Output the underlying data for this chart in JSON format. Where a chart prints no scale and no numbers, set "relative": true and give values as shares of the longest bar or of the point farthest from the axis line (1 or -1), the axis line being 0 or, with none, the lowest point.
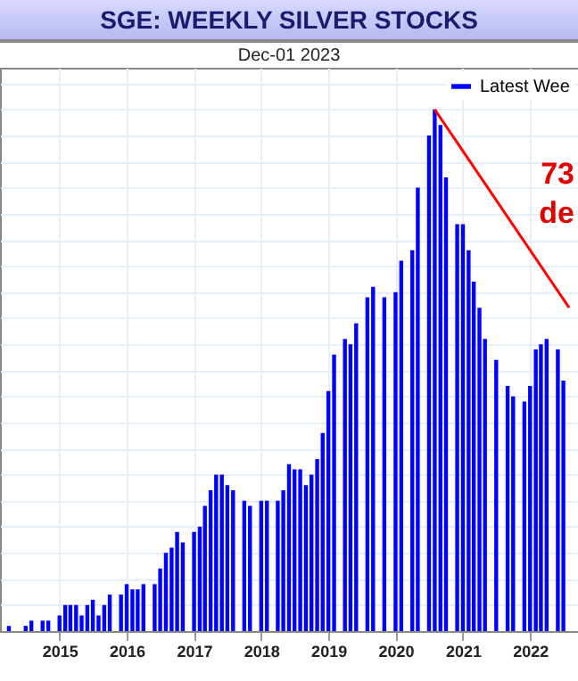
{
  "chart_data": {
    "type": "bar",
    "title": "SGE: WEEKLY SILVER STOCKS",
    "subtitle": "Dec-01  2023",
    "relative": true,
    "grid": true,
    "legend": "top right",
    "xlim": [
      "2014-04",
      "2022-08"
    ],
    "xticks": [
      "2015",
      "2016",
      "2017",
      "2018",
      "2019",
      "2020",
      "2021",
      "2022"
    ],
    "annotations": [
      "73",
      "de"
    ],
    "series": [
      {
        "name": "Latest Wee",
        "color": "#0000ff",
        "x": [
          "2014-04",
          "2014-07",
          "2014-08",
          "2014-10",
          "2014-11",
          "2015-01",
          "2015-02",
          "2015-03",
          "2015-04",
          "2015-05",
          "2015-06",
          "2015-07",
          "2015-08",
          "2015-09",
          "2015-10",
          "2015-12",
          "2016-01",
          "2016-02",
          "2016-03",
          "2016-04",
          "2016-06",
          "2016-07",
          "2016-08",
          "2016-09",
          "2016-10",
          "2016-11",
          "2017-01",
          "2017-02",
          "2017-03",
          "2017-04",
          "2017-05",
          "2017-06",
          "2017-07",
          "2017-08",
          "2017-10",
          "2017-11",
          "2018-01",
          "2018-02",
          "2018-04",
          "2018-05",
          "2018-06",
          "2018-07",
          "2018-08",
          "2018-09",
          "2018-10",
          "2018-11",
          "2018-12",
          "2019-01",
          "2019-02",
          "2019-04",
          "2019-05",
          "2019-06",
          "2019-08",
          "2019-09",
          "2019-11",
          "2020-01",
          "2020-02",
          "2020-04",
          "2020-05",
          "2020-07",
          "2020-08",
          "2020-09",
          "2020-10",
          "2020-12",
          "2021-01",
          "2021-02",
          "2021-03",
          "2021-04",
          "2021-05",
          "2021-07",
          "2021-09",
          "2021-10",
          "2021-12",
          "2022-01",
          "2022-02",
          "2022-03",
          "2022-04",
          "2022-06",
          "2022-07"
        ],
        "values": [
          0.01,
          0.01,
          0.02,
          0.02,
          0.02,
          0.03,
          0.05,
          0.05,
          0.05,
          0.03,
          0.05,
          0.06,
          0.03,
          0.05,
          0.07,
          0.07,
          0.09,
          0.08,
          0.08,
          0.09,
          0.09,
          0.12,
          0.15,
          0.16,
          0.19,
          0.17,
          0.19,
          0.2,
          0.24,
          0.27,
          0.3,
          0.3,
          0.28,
          0.27,
          0.25,
          0.24,
          0.25,
          0.25,
          0.25,
          0.27,
          0.32,
          0.31,
          0.31,
          0.28,
          0.3,
          0.33,
          0.38,
          0.46,
          0.53,
          0.56,
          0.55,
          0.59,
          0.64,
          0.66,
          0.64,
          0.65,
          0.71,
          0.73,
          0.85,
          0.95,
          1,
          0.97,
          0.87,
          0.78,
          0.78,
          0.73,
          0.67,
          0.62,
          0.56,
          0.52,
          0.47,
          0.45,
          0.44,
          0.47,
          0.54,
          0.55,
          0.56,
          0.54,
          0.48
        ]
      },
      {
        "type": "line",
        "color": "#ff0000",
        "x": [
          "2020-08",
          "2022-08"
        ],
        "values": [
          1,
          0.62
        ]
      }
    ]
  }
}
